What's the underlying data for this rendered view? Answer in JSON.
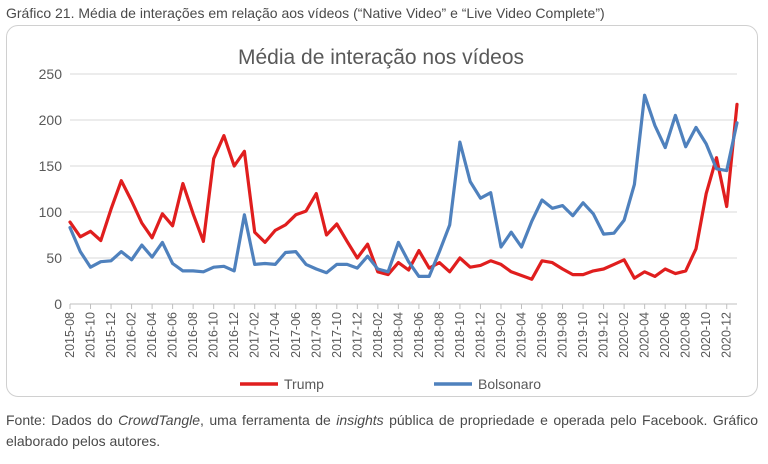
{
  "caption": "Gráfico 21. Média de interações em relação aos vídeos (“Native Video” e “Live Video Complete”)",
  "source": {
    "pre": "Fonte: Dados do ",
    "em1": "CrowdTangle",
    "mid": ", uma ferramenta de ",
    "em2": "insights",
    "post": " pública de propriedade e operada pelo Facebook. Gráfico elaborado pelos autores."
  },
  "chart_data": {
    "type": "line",
    "title": "Média de interação nos vídeos",
    "xlabel": "",
    "ylabel": "",
    "ylim": [
      0,
      250
    ],
    "yticks": [
      0,
      50,
      100,
      150,
      200,
      250
    ],
    "grid": true,
    "legend": "bottom",
    "x": [
      "2015-08",
      "2015-09",
      "2015-10",
      "2015-11",
      "2015-12",
      "2016-01",
      "2016-02",
      "2016-03",
      "2016-04",
      "2016-05",
      "2016-06",
      "2016-07",
      "2016-08",
      "2016-09",
      "2016-10",
      "2016-11",
      "2016-12",
      "2017-01",
      "2017-02",
      "2017-03",
      "2017-04",
      "2017-05",
      "2017-06",
      "2017-07",
      "2017-08",
      "2017-09",
      "2017-10",
      "2017-11",
      "2017-12",
      "2018-01",
      "2018-02",
      "2018-03",
      "2018-04",
      "2018-05",
      "2018-06",
      "2018-07",
      "2018-08",
      "2018-09",
      "2018-10",
      "2018-11",
      "2018-12",
      "2019-01",
      "2019-02",
      "2019-03",
      "2019-04",
      "2019-05",
      "2019-06",
      "2019-07",
      "2019-08",
      "2019-09",
      "2019-10",
      "2019-11",
      "2019-12",
      "2020-01",
      "2020-02",
      "2020-03",
      "2020-04",
      "2020-05",
      "2020-06",
      "2020-07",
      "2020-08",
      "2020-09",
      "2020-10",
      "2020-11",
      "2020-12",
      "2021-01"
    ],
    "tick_labels": [
      "2015-08",
      "2015-10",
      "2015-12",
      "2016-02",
      "2016-04",
      "2016-06",
      "2016-08",
      "2016-10",
      "2016-12",
      "2017-02",
      "2017-04",
      "2017-06",
      "2017-08",
      "2017-10",
      "2017-12",
      "2018-02",
      "2018-04",
      "2018-06",
      "2018-08",
      "2018-10",
      "2018-12",
      "2019-02",
      "2019-04",
      "2019-06",
      "2019-08",
      "2019-10",
      "2019-12",
      "2020-02",
      "2020-04",
      "2020-06",
      "2020-08",
      "2020-10",
      "2020-12"
    ],
    "series": [
      {
        "name": "Trump",
        "color": "#e01e1e",
        "values": [
          89,
          73,
          79,
          69,
          103,
          134,
          112,
          88,
          72,
          98,
          85,
          131,
          98,
          68,
          158,
          183,
          150,
          166,
          78,
          67,
          80,
          86,
          97,
          101,
          120,
          75,
          87,
          68,
          50,
          65,
          35,
          32,
          45,
          37,
          58,
          39,
          45,
          35,
          50,
          40,
          42,
          47,
          43,
          35,
          31,
          27,
          47,
          45,
          38,
          32,
          32,
          36,
          38,
          43,
          48,
          28,
          35,
          30,
          38,
          33,
          36,
          60,
          120,
          159,
          106,
          217
        ]
      },
      {
        "name": "Bolsonaro",
        "color": "#4f81bd",
        "values": [
          83,
          57,
          40,
          46,
          47,
          57,
          48,
          64,
          51,
          67,
          44,
          36,
          36,
          35,
          40,
          41,
          36,
          97,
          43,
          44,
          43,
          56,
          57,
          43,
          38,
          34,
          43,
          43,
          39,
          52,
          38,
          35,
          67,
          46,
          30,
          30,
          57,
          86,
          176,
          133,
          115,
          121,
          62,
          78,
          62,
          90,
          113,
          104,
          107,
          96,
          110,
          98,
          76,
          77,
          91,
          130,
          227,
          194,
          170,
          205,
          171,
          192,
          174,
          147,
          145,
          197
        ]
      }
    ]
  }
}
